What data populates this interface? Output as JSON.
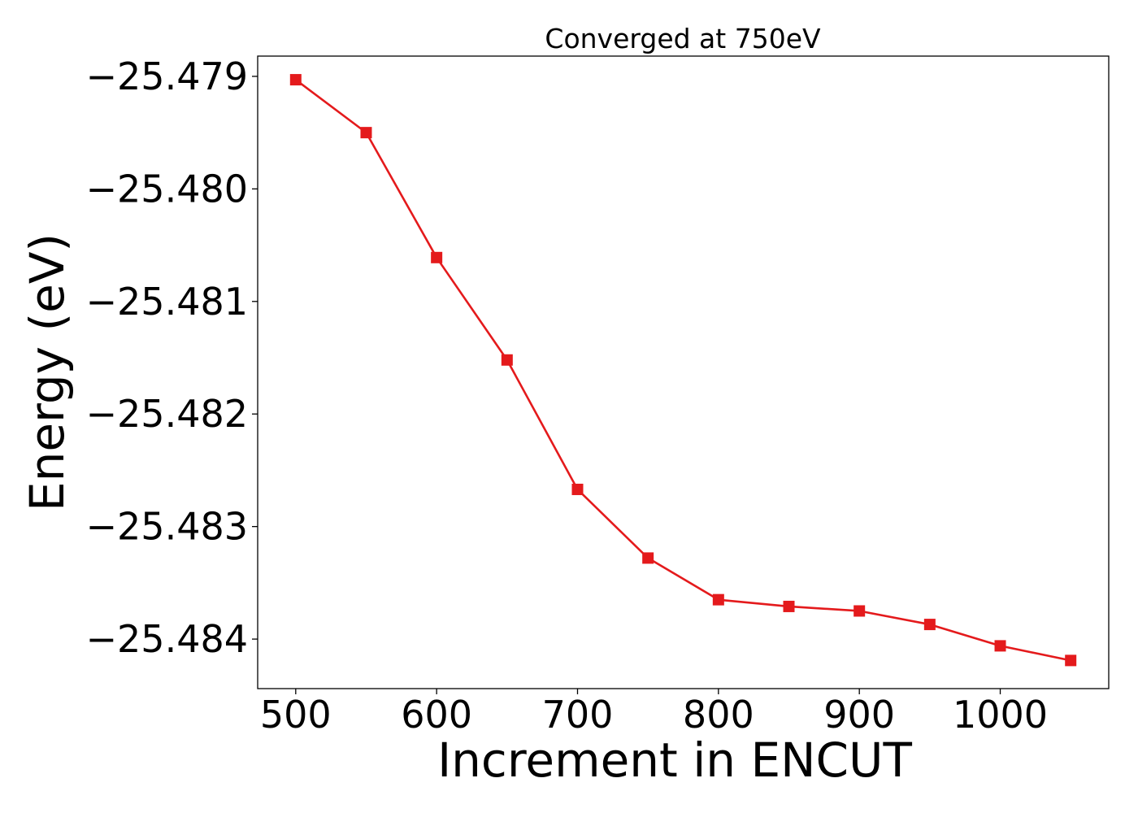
{
  "chart_data": {
    "type": "line",
    "title": "Converged at 750eV",
    "xlabel": "Increment in ENCUT",
    "ylabel": "Energy (eV)",
    "xlim": [
      473,
      1077
    ],
    "ylim": [
      -25.48444,
      -25.47882
    ],
    "x_ticks": [
      500,
      600,
      700,
      800,
      900,
      1000
    ],
    "x_tick_labels": [
      "500",
      "600",
      "700",
      "800",
      "900",
      "1000"
    ],
    "y_ticks": [
      -25.479,
      -25.48,
      -25.481,
      -25.482,
      -25.483,
      -25.484
    ],
    "y_tick_labels": [
      "−25.479",
      "−25.480",
      "−25.481",
      "−25.482",
      "−25.483",
      "−25.484"
    ],
    "grid": false,
    "series": [
      {
        "color": "#e41a1c",
        "marker": "square",
        "x": [
          500,
          550,
          600,
          650,
          700,
          750,
          800,
          850,
          900,
          950,
          1000,
          1050
        ],
        "y": [
          -25.47903,
          -25.4795,
          -25.48061,
          -25.48152,
          -25.48267,
          -25.48328,
          -25.48365,
          -25.48371,
          -25.48375,
          -25.48387,
          -25.48406,
          -25.48419
        ]
      }
    ]
  }
}
